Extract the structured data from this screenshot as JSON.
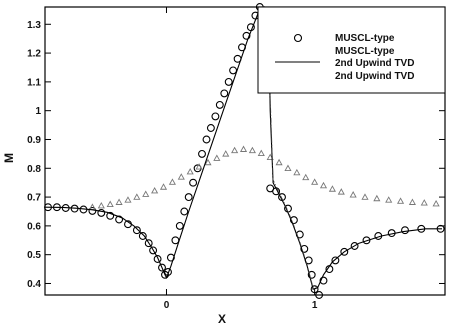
{
  "chart_data": {
    "type": "line",
    "xlabel": "X",
    "ylabel": "M",
    "xlim": [
      -0.82,
      1.88
    ],
    "ylim": [
      0.36,
      1.36
    ],
    "x_ticks": [
      0,
      1
    ],
    "y_ticks": [
      0.4,
      0.5,
      0.6,
      0.7,
      0.8,
      0.9,
      1,
      1.1,
      1.2,
      1.3
    ],
    "y_tick_labels": [
      "0.4",
      "0.5",
      "0.6",
      "0.7",
      "0.8",
      "0.9",
      "1",
      "1.1",
      "1.2",
      "1.3"
    ],
    "x_tick_labels": [
      "0",
      "1"
    ],
    "grid": false,
    "legend_position": "top-right",
    "legend": [
      "MUSCL-type",
      "MUSCL-type",
      "2nd Upwind TVD",
      "2nd Upwind TVD"
    ],
    "series": [
      {
        "name": "MUSCL-type",
        "style": "circles",
        "x": [
          -0.8,
          -0.74,
          -0.68,
          -0.62,
          -0.56,
          -0.5,
          -0.44,
          -0.38,
          -0.32,
          -0.26,
          -0.2,
          -0.16,
          -0.12,
          -0.09,
          -0.06,
          -0.03,
          -0.01,
          0.01,
          0.03,
          0.06,
          0.09,
          0.12,
          0.15,
          0.18,
          0.21,
          0.24,
          0.27,
          0.3,
          0.33,
          0.36,
          0.39,
          0.42,
          0.45,
          0.48,
          0.51,
          0.54,
          0.57,
          0.6,
          0.63,
          0.66,
          0.7,
          0.74,
          0.78,
          0.82,
          0.86,
          0.9,
          0.93,
          0.96,
          0.98,
          1.0,
          1.03,
          1.06,
          1.1,
          1.14,
          1.2,
          1.27,
          1.35,
          1.43,
          1.52,
          1.61,
          1.72,
          1.85
        ],
        "y": [
          0.665,
          0.665,
          0.662,
          0.66,
          0.657,
          0.652,
          0.645,
          0.635,
          0.622,
          0.606,
          0.585,
          0.565,
          0.54,
          0.515,
          0.485,
          0.455,
          0.43,
          0.44,
          0.49,
          0.55,
          0.6,
          0.65,
          0.7,
          0.75,
          0.8,
          0.85,
          0.9,
          0.94,
          0.98,
          1.02,
          1.06,
          1.1,
          1.14,
          1.18,
          1.22,
          1.26,
          1.29,
          1.33,
          1.36,
          1.16,
          0.73,
          0.72,
          0.7,
          0.66,
          0.62,
          0.57,
          0.52,
          0.48,
          0.43,
          0.38,
          0.36,
          0.41,
          0.45,
          0.48,
          0.51,
          0.53,
          0.55,
          0.565,
          0.575,
          0.585,
          0.59,
          0.59
        ]
      },
      {
        "name": "MUSCL-type",
        "style": "triangles",
        "x": [
          -0.5,
          -0.44,
          -0.38,
          -0.32,
          -0.26,
          -0.2,
          -0.14,
          -0.08,
          -0.02,
          0.04,
          0.1,
          0.16,
          0.22,
          0.28,
          0.34,
          0.4,
          0.46,
          0.52,
          0.58,
          0.64,
          0.7,
          0.76,
          0.82,
          0.88,
          0.94,
          1.0,
          1.06,
          1.12,
          1.18,
          1.26,
          1.34,
          1.42,
          1.5,
          1.58,
          1.66,
          1.74,
          1.82
        ],
        "y": [
          0.665,
          0.67,
          0.675,
          0.682,
          0.69,
          0.7,
          0.71,
          0.722,
          0.735,
          0.752,
          0.77,
          0.788,
          0.805,
          0.82,
          0.835,
          0.85,
          0.862,
          0.866,
          0.862,
          0.852,
          0.838,
          0.82,
          0.8,
          0.785,
          0.768,
          0.752,
          0.74,
          0.728,
          0.718,
          0.708,
          0.7,
          0.695,
          0.69,
          0.686,
          0.682,
          0.68,
          0.677
        ]
      },
      {
        "name": "2nd Upwind TVD",
        "style": "solid",
        "x": [
          -0.82,
          -0.7,
          -0.6,
          -0.5,
          -0.4,
          -0.3,
          -0.22,
          -0.15,
          -0.1,
          -0.06,
          -0.03,
          -0.01,
          0.0,
          0.03,
          0.08,
          0.15,
          0.25,
          0.35,
          0.45,
          0.55,
          0.62,
          0.66,
          0.69,
          0.7,
          0.72,
          0.76,
          0.8,
          0.85,
          0.9,
          0.95,
          0.99,
          1.02,
          1.06,
          1.12,
          1.2,
          1.3,
          1.45,
          1.6,
          1.75,
          1.86
        ],
        "y": [
          0.665,
          0.664,
          0.661,
          0.656,
          0.647,
          0.628,
          0.6,
          0.565,
          0.525,
          0.49,
          0.455,
          0.43,
          0.42,
          0.46,
          0.54,
          0.65,
          0.8,
          0.95,
          1.1,
          1.25,
          1.34,
          1.36,
          1.3,
          1.0,
          0.75,
          0.71,
          0.67,
          0.61,
          0.54,
          0.46,
          0.38,
          0.385,
          0.43,
          0.475,
          0.51,
          0.54,
          0.565,
          0.58,
          0.59,
          0.59
        ]
      },
      {
        "name": "2nd Upwind TVD",
        "style": "dash-dot",
        "x": [
          0.62,
          0.66,
          0.69,
          0.7,
          0.72,
          0.76,
          0.8,
          0.85,
          0.9,
          0.95,
          0.99,
          1.02
        ],
        "y": [
          1.34,
          1.36,
          1.32,
          1.05,
          0.76,
          0.715,
          0.675,
          0.615,
          0.545,
          0.465,
          0.385,
          0.39
        ]
      }
    ]
  }
}
